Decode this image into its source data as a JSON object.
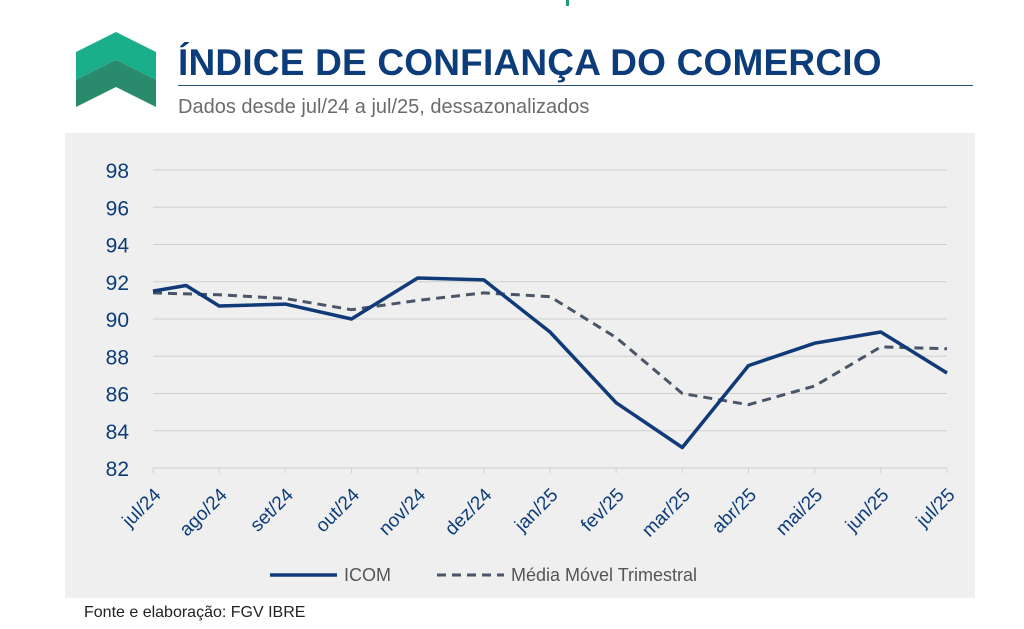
{
  "header": {
    "title": "ÍNDICE DE CONFIANÇA DO COMERCIO",
    "subtitle": "Dados desde jul/24 a jul/25, dessazonalizados"
  },
  "footer": {
    "source": "Fonte e elaboração: FGV IBRE"
  },
  "colors": {
    "title": "#0d3c7a",
    "logo_light": "#1aae8a",
    "logo_dark": "#2a8a6c",
    "panel_bg": "#efefef",
    "grid": "#cfcfcf",
    "icom": "#103a78",
    "mm3": "#4a5568"
  },
  "chart_data": {
    "type": "line",
    "title": "",
    "xlabel": "",
    "ylabel": "",
    "categories": [
      "jul/24",
      "ago/24",
      "set/24",
      "out/24",
      "nov/24",
      "dez/24",
      "jan/25",
      "fev/25",
      "mar/25",
      "abr/25",
      "mai/25",
      "jun/25",
      "jul/25"
    ],
    "ylim": [
      82,
      98
    ],
    "yticks": [
      82,
      84,
      86,
      88,
      90,
      92,
      94,
      96,
      98
    ],
    "grid": true,
    "legend_position": "bottom",
    "series": [
      {
        "name": "ICOM",
        "style": "solid",
        "color": "#103a78",
        "x": [
          0,
          0.5,
          1,
          2,
          3,
          4,
          5,
          6,
          7,
          8,
          9,
          10,
          11,
          12
        ],
        "values": [
          91.5,
          91.8,
          90.7,
          90.8,
          90.0,
          92.2,
          92.1,
          89.3,
          85.5,
          83.1,
          87.5,
          88.7,
          89.3,
          87.1
        ]
      },
      {
        "name": "Média Móvel Trimestral",
        "style": "dashed",
        "color": "#4a5568",
        "x": [
          0,
          1,
          2,
          3,
          4,
          5,
          6,
          7,
          8,
          9,
          10,
          11,
          12
        ],
        "values": [
          91.4,
          91.3,
          91.1,
          90.5,
          91.0,
          91.4,
          91.2,
          89.0,
          86.0,
          85.4,
          86.4,
          88.5,
          88.4
        ]
      }
    ]
  }
}
